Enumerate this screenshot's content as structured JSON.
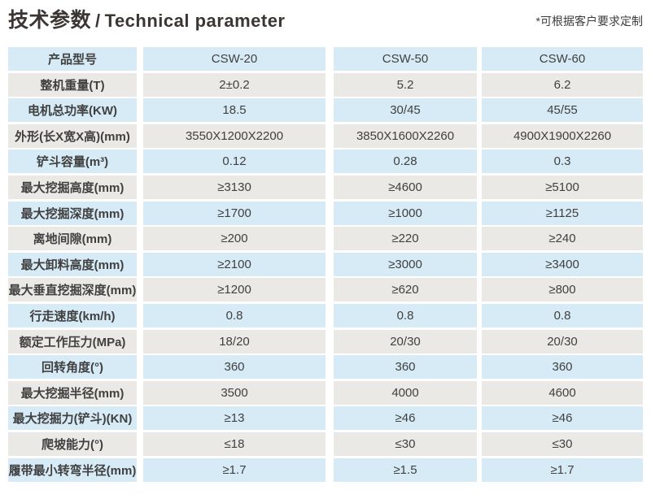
{
  "header": {
    "title_zh": "技术参数",
    "separator": "/",
    "title_en": "Technical parameter",
    "note": "*可根据客户要求定制"
  },
  "table": {
    "models": [
      "CSW-20",
      "CSW-50",
      "CSW-60"
    ],
    "rows": [
      {
        "label": "产品型号",
        "values": [
          "CSW-20",
          "CSW-50",
          "CSW-60"
        ]
      },
      {
        "label": "整机重量(T)",
        "values": [
          "2±0.2",
          "5.2",
          "6.2"
        ]
      },
      {
        "label": "电机总功率(KW)",
        "values": [
          "18.5",
          "30/45",
          "45/55"
        ]
      },
      {
        "label": "外形(长X宽X高)(mm)",
        "values": [
          "3550X1200X2200",
          "3850X1600X2260",
          "4900X1900X2260"
        ]
      },
      {
        "label": "铲斗容量(m³)",
        "values": [
          "0.12",
          "0.28",
          "0.3"
        ]
      },
      {
        "label": "最大挖掘高度(mm)",
        "values": [
          "≥3130",
          "≥4600",
          "≥5100"
        ]
      },
      {
        "label": "最大挖掘深度(mm)",
        "values": [
          "≥1700",
          "≥1000",
          "≥1125"
        ]
      },
      {
        "label": "离地间隙(mm)",
        "values": [
          "≥200",
          "≥220",
          "≥240"
        ]
      },
      {
        "label": "最大卸料高度(mm)",
        "values": [
          "≥2100",
          "≥3000",
          "≥3400"
        ]
      },
      {
        "label": "最大垂直挖掘深度(mm)",
        "values": [
          "≥1200",
          "≥620",
          "≥800"
        ]
      },
      {
        "label": "行走速度(km/h)",
        "values": [
          "0.8",
          "0.8",
          "0.8"
        ]
      },
      {
        "label": "额定工作压力(MPa)",
        "values": [
          "18/20",
          "20/30",
          "20/30"
        ]
      },
      {
        "label": "回转角度(°)",
        "values": [
          "360",
          "360",
          "360"
        ]
      },
      {
        "label": "最大挖掘半径(mm)",
        "values": [
          "3500",
          "4000",
          "4600"
        ]
      },
      {
        "label": "最大挖掘力(铲斗)(KN)",
        "values": [
          "≥13",
          "≥46",
          "≥46"
        ]
      },
      {
        "label": "爬坡能力(°)",
        "values": [
          "≤18",
          "≤30",
          "≤30"
        ]
      },
      {
        "label": "履带最小转弯半径(mm)",
        "values": [
          "≥1.7",
          "≥1.5",
          "≥1.7"
        ]
      }
    ]
  },
  "colors": {
    "row_blue": "#D7EBF7",
    "row_gray": "#EBE9E6",
    "text": "#404040",
    "title_text": "#3B3633",
    "background": "#FFFFFF"
  }
}
